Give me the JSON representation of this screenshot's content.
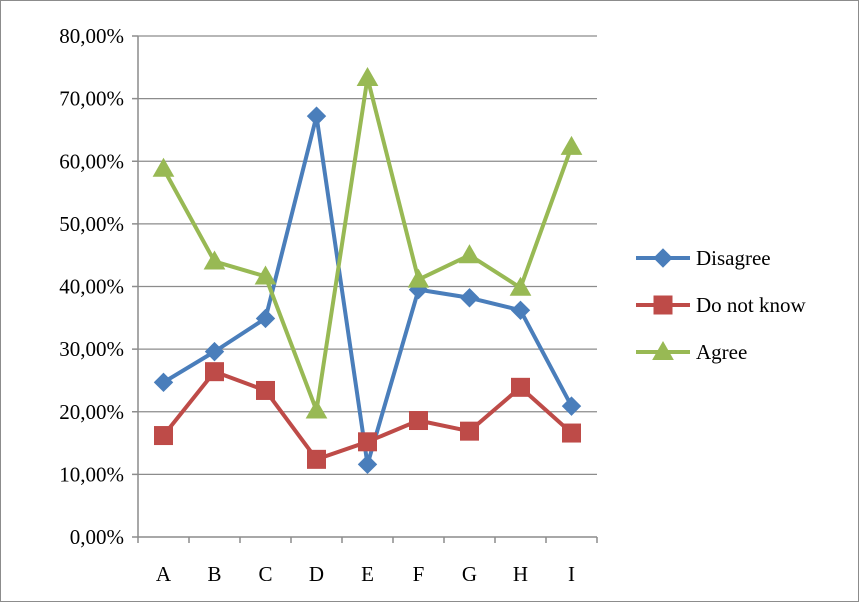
{
  "chart_data": {
    "type": "line",
    "categories": [
      "A",
      "B",
      "C",
      "D",
      "E",
      "F",
      "G",
      "H",
      "I"
    ],
    "ylim": [
      0,
      80
    ],
    "ytick_values": [
      0,
      10,
      20,
      30,
      40,
      50,
      60,
      70,
      80
    ],
    "ytick_labels": [
      "0,00%",
      "10,00%",
      "20,00%",
      "30,00%",
      "40,00%",
      "50,00%",
      "60,00%",
      "70,00%",
      "80,00%"
    ],
    "grid": true,
    "legend_position": "right",
    "title": "",
    "xlabel": "",
    "ylabel": "",
    "series": [
      {
        "name": "Disagree",
        "color": "#4a7ebb",
        "marker": "diamond",
        "values": [
          24.7,
          29.6,
          34.9,
          67.2,
          11.6,
          39.5,
          38.2,
          36.2,
          20.9
        ]
      },
      {
        "name": "Do not know",
        "color": "#be4b48",
        "marker": "square",
        "values": [
          16.2,
          26.4,
          23.4,
          12.4,
          15.2,
          18.6,
          16.9,
          23.9,
          16.6
        ]
      },
      {
        "name": "Agree",
        "color": "#98b954",
        "marker": "triangle",
        "values": [
          58.8,
          44.0,
          41.6,
          20.2,
          73.3,
          41.1,
          45.0,
          39.8,
          62.3
        ]
      }
    ]
  }
}
